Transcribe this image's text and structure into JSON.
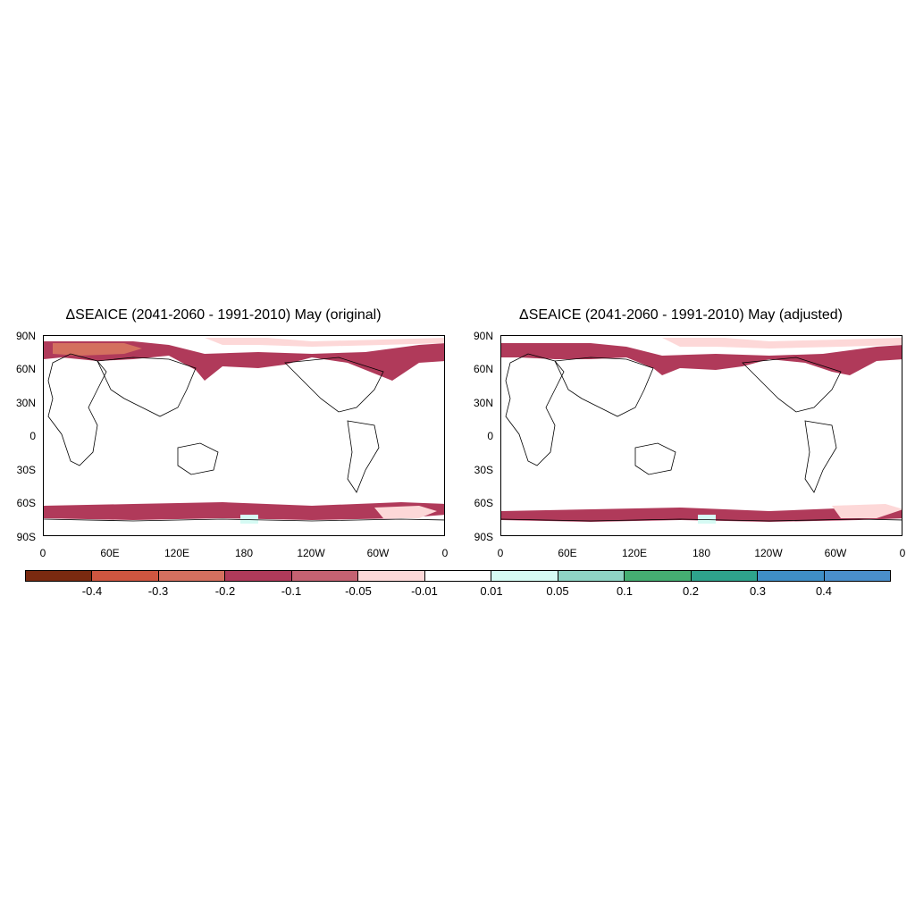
{
  "panels": [
    {
      "title": "ΔSEAICE (2041-2060 - 1991-2010) May (original)"
    },
    {
      "title": "ΔSEAICE (2041-2060 - 1991-2010) May (adjusted)"
    }
  ],
  "lat_labels": [
    "90N",
    "60N",
    "30N",
    "0",
    "30S",
    "60S",
    "90S"
  ],
  "lon_labels": [
    "0",
    "60E",
    "120E",
    "180",
    "120W",
    "60W",
    "0"
  ],
  "colorbar": {
    "labels": [
      "-0.4",
      "-0.3",
      "-0.2",
      "-0.1",
      "-0.05",
      "-0.01",
      "0.01",
      "0.05",
      "0.1",
      "0.2",
      "0.3",
      "0.4"
    ],
    "colors": [
      "#7a2a10",
      "#cf5640",
      "#d4705f",
      "#b03a5a",
      "#c46272",
      "#fdd8d8",
      "#ffffff",
      "#d6fbf4",
      "#8fd3c4",
      "#45ae72",
      "#2ea38c",
      "#3f8ec6",
      "#4a8fcb"
    ]
  },
  "ice_colors": {
    "strong_loss": "#b03a5a",
    "moderate_loss": "#c46272",
    "coral_loss": "#d4705f",
    "slight_loss": "#fdd8d8",
    "slight_gain": "#d6fbf4"
  }
}
